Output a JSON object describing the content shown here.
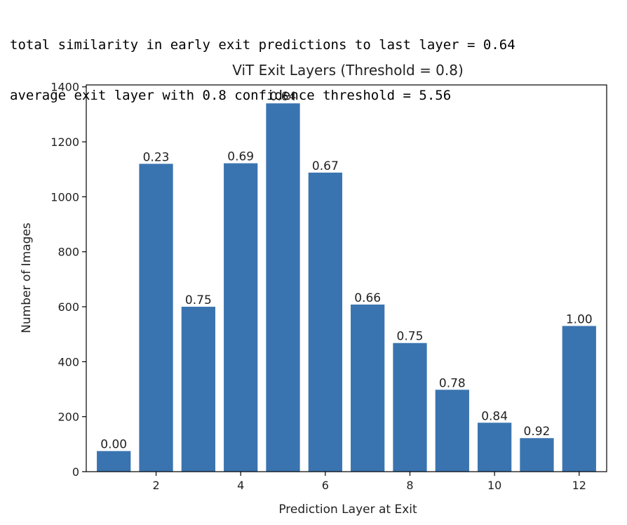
{
  "console_output": {
    "line1": "total similarity in early exit predictions to last layer = 0.64",
    "line2": "average exit layer with 0.8 confidence threshold = 5.56"
  },
  "chart_data": {
    "type": "bar",
    "title": "ViT Exit Layers (Threshold = 0.8)",
    "xlabel": "Prediction Layer at Exit",
    "ylabel": "Number of Images",
    "x": [
      1,
      2,
      3,
      4,
      5,
      6,
      7,
      8,
      9,
      10,
      11,
      12
    ],
    "values": [
      75,
      1120,
      600,
      1122,
      1340,
      1088,
      608,
      468,
      298,
      178,
      122,
      530
    ],
    "bar_labels": [
      "0.00",
      "0.23",
      "0.75",
      "0.69",
      "0.64",
      "0.67",
      "0.66",
      "0.75",
      "0.78",
      "0.84",
      "0.92",
      "1.00"
    ],
    "xticks": [
      2,
      4,
      6,
      8,
      10,
      12
    ],
    "yticks": [
      0,
      200,
      400,
      600,
      800,
      1000,
      1200,
      1400
    ],
    "xlim": [
      0.35,
      12.65
    ],
    "ylim": [
      0,
      1407
    ],
    "bar_color": "#3a74b0",
    "grid": false
  }
}
